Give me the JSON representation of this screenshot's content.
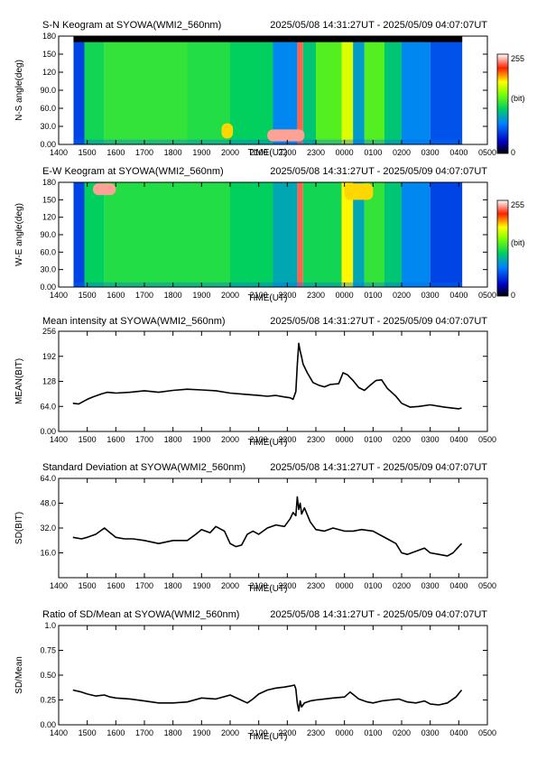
{
  "x_ticks": [
    "1400",
    "1500",
    "1600",
    "1700",
    "1800",
    "1900",
    "2000",
    "2100",
    "2200",
    "2300",
    "0000",
    "0100",
    "0200",
    "0300",
    "0400",
    "0500"
  ],
  "colorbar": {
    "max_label": "255",
    "unit_label": "(bit)",
    "min_label": "0"
  },
  "chart_data": [
    {
      "id": "sn",
      "type": "heatmap",
      "title": "S-N Keogram at SYOWA(WMI2_560nm)",
      "time_range": "2025/05/08 14:31:27UT - 2025/05/09 04:07:07UT",
      "xlabel": "TIME(UT)",
      "ylabel": "N-S angle(deg)",
      "yticks": [
        "0.00",
        "30.0",
        "60.0",
        "90.0",
        "120",
        "150",
        "180"
      ],
      "ylim": [
        0,
        180
      ],
      "xlim_hours": [
        14,
        29
      ],
      "data_start_hour": 14.52,
      "data_end_hour": 28.12,
      "bands": [
        {
          "t0": 14.52,
          "t1": 14.9,
          "value": 55
        },
        {
          "t0": 14.9,
          "t1": 15.6,
          "value": 120
        },
        {
          "t0": 15.6,
          "t1": 18.5,
          "value": 130
        },
        {
          "t0": 18.5,
          "t1": 20.0,
          "value": 125
        },
        {
          "t0": 20.0,
          "t1": 21.5,
          "value": 115
        },
        {
          "t0": 21.5,
          "t1": 22.35,
          "value": 80
        },
        {
          "t0": 22.35,
          "t1": 22.55,
          "value": 230
        },
        {
          "t0": 22.55,
          "t1": 23.0,
          "value": 110
        },
        {
          "t0": 23.0,
          "t1": 23.9,
          "value": 140
        },
        {
          "t0": 23.9,
          "t1": 24.3,
          "value": 175
        },
        {
          "t0": 24.3,
          "t1": 24.7,
          "value": 90
        },
        {
          "t0": 24.7,
          "t1": 25.4,
          "value": 140
        },
        {
          "t0": 25.4,
          "t1": 26.0,
          "value": 110
        },
        {
          "t0": 26.0,
          "t1": 27.0,
          "value": 80
        },
        {
          "t0": 27.0,
          "t1": 28.12,
          "value": 60
        }
      ],
      "features": [
        {
          "t0": 21.3,
          "t1": 22.6,
          "a0": 5,
          "a1": 25,
          "value": 240
        },
        {
          "t0": 19.7,
          "t1": 20.1,
          "a0": 10,
          "a1": 35,
          "value": 190
        }
      ],
      "masked_band": {
        "a0": 170,
        "a1": 180
      }
    },
    {
      "id": "ew",
      "type": "heatmap",
      "title": "E-W Keogram at SYOWA(WMI2_560nm)",
      "time_range": "2025/05/08 14:31:27UT - 2025/05/09 04:07:07UT",
      "xlabel": "TIME(UT)",
      "ylabel": "W-E angle(deg)",
      "yticks": [
        "0.00",
        "30.0",
        "60.0",
        "90.0",
        "120",
        "150",
        "180"
      ],
      "ylim": [
        0,
        180
      ],
      "xlim_hours": [
        14,
        29
      ],
      "data_start_hour": 14.52,
      "data_end_hour": 28.12,
      "bands": [
        {
          "t0": 14.52,
          "t1": 14.9,
          "value": 55
        },
        {
          "t0": 14.9,
          "t1": 15.6,
          "value": 115
        },
        {
          "t0": 15.6,
          "t1": 18.5,
          "value": 125
        },
        {
          "t0": 18.5,
          "t1": 20.0,
          "value": 125
        },
        {
          "t0": 20.0,
          "t1": 21.5,
          "value": 115
        },
        {
          "t0": 21.5,
          "t1": 22.35,
          "value": 95
        },
        {
          "t0": 22.35,
          "t1": 22.55,
          "value": 230
        },
        {
          "t0": 22.55,
          "t1": 23.9,
          "value": 120
        },
        {
          "t0": 23.9,
          "t1": 24.3,
          "value": 185
        },
        {
          "t0": 24.3,
          "t1": 24.7,
          "value": 95
        },
        {
          "t0": 24.7,
          "t1": 25.4,
          "value": 130
        },
        {
          "t0": 25.4,
          "t1": 26.0,
          "value": 110
        },
        {
          "t0": 26.0,
          "t1": 27.0,
          "value": 80
        },
        {
          "t0": 27.0,
          "t1": 28.12,
          "value": 55
        }
      ],
      "features": [
        {
          "t0": 15.2,
          "t1": 16.0,
          "a0": 158,
          "a1": 178,
          "value": 240
        },
        {
          "t0": 24.0,
          "t1": 25.0,
          "a0": 150,
          "a1": 178,
          "value": 190
        }
      ]
    },
    {
      "id": "mean",
      "type": "line",
      "title": "Mean intensity at SYOWA(WMI2_560nm)",
      "time_range": "2025/05/08 14:31:27UT - 2025/05/09 04:07:07UT",
      "xlabel": "TIME(UT)",
      "ylabel": "MEAN(BIT)",
      "yticks": [
        "0.00",
        "64.0",
        "128",
        "192",
        "256"
      ],
      "ylim": [
        0,
        256
      ],
      "xlim_hours": [
        14,
        29
      ],
      "x": [
        14.5,
        14.7,
        14.9,
        15.0,
        15.2,
        15.5,
        15.7,
        16.0,
        16.5,
        17.0,
        17.5,
        18.0,
        18.5,
        19.0,
        19.5,
        20.0,
        20.5,
        21.0,
        21.3,
        21.6,
        21.9,
        22.1,
        22.2,
        22.3,
        22.35,
        22.4,
        22.45,
        22.5,
        22.55,
        22.7,
        22.9,
        23.1,
        23.3,
        23.5,
        23.8,
        23.95,
        24.1,
        24.3,
        24.5,
        24.7,
        24.9,
        25.1,
        25.3,
        25.5,
        25.8,
        26.0,
        26.3,
        26.6,
        27.0,
        27.5,
        28.0,
        28.1
      ],
      "y": [
        72,
        70,
        78,
        82,
        88,
        96,
        100,
        98,
        100,
        104,
        100,
        105,
        108,
        106,
        104,
        98,
        95,
        92,
        90,
        92,
        88,
        86,
        82,
        102,
        170,
        225,
        205,
        190,
        172,
        150,
        125,
        118,
        114,
        120,
        122,
        150,
        145,
        130,
        112,
        105,
        118,
        130,
        132,
        110,
        90,
        72,
        62,
        64,
        68,
        62,
        58,
        60
      ]
    },
    {
      "id": "sd",
      "type": "line",
      "title": "Standard Deviation at SYOWA(WMI2_560nm)",
      "time_range": "2025/05/08 14:31:27UT - 2025/05/09 04:07:07UT",
      "xlabel": "TIME(UT)",
      "ylabel": "SD(BIT)",
      "yticks": [
        "16.0",
        "32.0",
        "48.0",
        "64.0"
      ],
      "ylim": [
        0,
        64
      ],
      "xlim_hours": [
        14,
        29
      ],
      "x": [
        14.5,
        14.8,
        15.0,
        15.3,
        15.6,
        15.8,
        16.0,
        16.3,
        16.6,
        17.0,
        17.5,
        18.0,
        18.5,
        18.8,
        19.0,
        19.3,
        19.5,
        19.8,
        20.0,
        20.2,
        20.4,
        20.6,
        20.8,
        21.0,
        21.3,
        21.6,
        21.9,
        22.1,
        22.2,
        22.3,
        22.35,
        22.4,
        22.45,
        22.5,
        22.6,
        22.8,
        23.0,
        23.3,
        23.6,
        24.0,
        24.3,
        24.6,
        25.0,
        25.5,
        25.8,
        26.0,
        26.2,
        26.5,
        26.8,
        27.0,
        27.3,
        27.6,
        27.8,
        28.0,
        28.1
      ],
      "y": [
        26,
        25,
        26,
        28,
        32,
        29,
        26,
        25,
        25,
        24,
        22,
        24,
        24,
        28,
        31,
        29,
        33,
        30,
        22,
        20,
        21,
        28,
        30,
        28,
        32,
        34,
        33,
        38,
        42,
        40,
        52,
        44,
        48,
        41,
        45,
        36,
        31,
        30,
        32,
        30,
        30,
        31,
        30,
        25,
        22,
        16,
        15,
        17,
        19,
        16,
        15,
        14,
        16,
        20,
        22
      ]
    },
    {
      "id": "ratio",
      "type": "line",
      "title": "Ratio of SD/Mean at SYOWA(WMI2_560nm)",
      "time_range": "2025/05/08 14:31:27UT - 2025/05/09 04:07:07UT",
      "xlabel": "TIME(UT)",
      "ylabel": "SD/Mean",
      "yticks": [
        "0.00",
        "0.25",
        "0.50",
        "0.75",
        "1.0"
      ],
      "ylim": [
        0,
        1.0
      ],
      "xlim_hours": [
        14,
        29
      ],
      "x": [
        14.5,
        14.8,
        15.0,
        15.3,
        15.6,
        15.8,
        16.0,
        16.5,
        17.0,
        17.5,
        18.0,
        18.5,
        19.0,
        19.5,
        20.0,
        20.3,
        20.6,
        20.8,
        21.0,
        21.3,
        21.6,
        21.9,
        22.1,
        22.25,
        22.3,
        22.35,
        22.4,
        22.45,
        22.5,
        22.6,
        22.8,
        23.0,
        23.3,
        23.6,
        24.0,
        24.2,
        24.5,
        24.8,
        25.0,
        25.3,
        25.6,
        25.9,
        26.2,
        26.5,
        26.8,
        27.0,
        27.3,
        27.6,
        27.9,
        28.1
      ],
      "y": [
        0.35,
        0.33,
        0.31,
        0.29,
        0.3,
        0.28,
        0.27,
        0.26,
        0.24,
        0.22,
        0.22,
        0.23,
        0.27,
        0.26,
        0.3,
        0.26,
        0.22,
        0.26,
        0.31,
        0.35,
        0.37,
        0.38,
        0.39,
        0.4,
        0.36,
        0.22,
        0.14,
        0.24,
        0.18,
        0.22,
        0.24,
        0.25,
        0.26,
        0.27,
        0.28,
        0.33,
        0.26,
        0.23,
        0.22,
        0.24,
        0.25,
        0.26,
        0.23,
        0.22,
        0.24,
        0.21,
        0.2,
        0.22,
        0.28,
        0.35
      ]
    }
  ]
}
